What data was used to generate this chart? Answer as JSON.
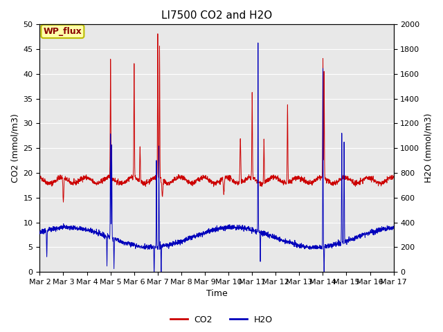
{
  "title": "LI7500 CO2 and H2O",
  "xlabel": "Time",
  "ylabel_left": "CO2 (mmol/m3)",
  "ylabel_right": "H2O (mmol/m3)",
  "ylim_left": [
    0,
    50
  ],
  "ylim_right": [
    0,
    2000
  ],
  "xtick_labels": [
    "Mar 2",
    "Mar 3",
    "Mar 4",
    "Mar 5",
    "Mar 6",
    "Mar 7",
    "Mar 8",
    "Mar 9",
    "Mar 10",
    "Mar 11",
    "Mar 12",
    "Mar 13",
    "Mar 14",
    "Mar 15",
    "Mar 16",
    "Mar 17"
  ],
  "annotation_text": "WP_flux",
  "annotation_bg": "#FFFFAA",
  "annotation_border": "#BBBB00",
  "co2_color": "#CC0000",
  "h2o_color": "#0000BB",
  "background_color": "#E8E8E8",
  "title_fontsize": 11,
  "axis_label_fontsize": 9,
  "tick_fontsize": 8,
  "legend_fontsize": 9,
  "grid_color": "#FFFFFF",
  "yticks_left": [
    0,
    5,
    10,
    15,
    20,
    25,
    30,
    35,
    40,
    45,
    50
  ],
  "yticks_right": [
    0,
    200,
    400,
    600,
    800,
    1000,
    1200,
    1400,
    1600,
    1800,
    2000
  ]
}
